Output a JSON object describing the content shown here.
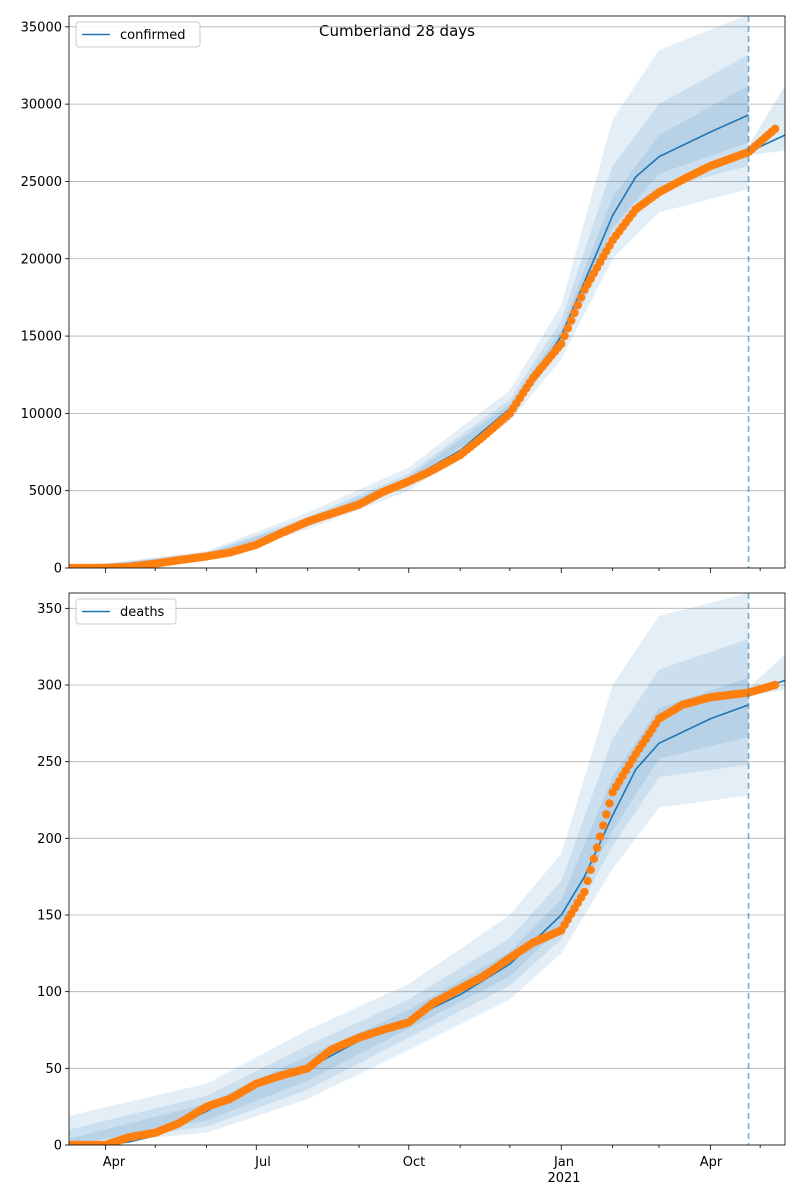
{
  "title": "Cumberland 28 days",
  "x_tick_labels": [
    "Apr",
    "Jul",
    "Oct",
    "Jan",
    "Apr"
  ],
  "x_year_label": "2021",
  "colors": {
    "model": "#1f77b4",
    "observed": "#ff7f0e",
    "grid": "#b0b0b0",
    "band": "#1f77b4"
  },
  "chart_data": [
    {
      "type": "line",
      "legend": "confirmed",
      "legend_position": "top-left",
      "x_range": [
        "2020-03-10",
        "2021-05-16"
      ],
      "ylim": [
        0,
        35700
      ],
      "yticks": [
        0,
        5000,
        10000,
        15000,
        20000,
        25000,
        30000,
        35000
      ],
      "grid": true,
      "forecast_start": "2021-04-24",
      "series": [
        {
          "name": "confirmed",
          "style": "line",
          "points": [
            [
              "2020-03-10",
              0
            ],
            [
              "2020-04-01",
              10
            ],
            [
              "2020-05-01",
              150
            ],
            [
              "2020-06-01",
              850
            ],
            [
              "2020-07-01",
              1450
            ],
            [
              "2020-08-01",
              3000
            ],
            [
              "2020-09-01",
              4200
            ],
            [
              "2020-10-01",
              5700
            ],
            [
              "2020-11-01",
              7600
            ],
            [
              "2020-12-01",
              10300
            ],
            [
              "2020-12-15",
              12200
            ],
            [
              "2021-01-01",
              15000
            ],
            [
              "2021-01-15",
              18500
            ],
            [
              "2021-02-01",
              22800
            ],
            [
              "2021-02-15",
              25300
            ],
            [
              "2021-03-01",
              26600
            ],
            [
              "2021-04-01",
              28200
            ],
            [
              "2021-04-24",
              29300
            ]
          ]
        },
        {
          "name": "confirmed-forecast",
          "style": "line",
          "points": [
            [
              "2021-04-24",
              26900
            ],
            [
              "2021-05-16",
              28000
            ]
          ]
        },
        {
          "name": "observed",
          "style": "markers",
          "points": [
            [
              "2020-03-10",
              0
            ],
            [
              "2020-04-01",
              10
            ],
            [
              "2020-04-15",
              70
            ],
            [
              "2020-05-01",
              280
            ],
            [
              "2020-05-15",
              500
            ],
            [
              "2020-06-01",
              750
            ],
            [
              "2020-06-15",
              1000
            ],
            [
              "2020-07-01",
              1500
            ],
            [
              "2020-07-15",
              2200
            ],
            [
              "2020-08-01",
              3000
            ],
            [
              "2020-08-15",
              3500
            ],
            [
              "2020-09-01",
              4100
            ],
            [
              "2020-09-15",
              4900
            ],
            [
              "2020-10-01",
              5600
            ],
            [
              "2020-10-15",
              6300
            ],
            [
              "2020-11-01",
              7300
            ],
            [
              "2020-11-15",
              8500
            ],
            [
              "2020-12-01",
              10000
            ],
            [
              "2020-12-15",
              12300
            ],
            [
              "2021-01-01",
              14500
            ],
            [
              "2021-01-15",
              18000
            ],
            [
              "2021-02-01",
              21200
            ],
            [
              "2021-02-15",
              23200
            ],
            [
              "2021-03-01",
              24300
            ],
            [
              "2021-03-15",
              25100
            ],
            [
              "2021-04-01",
              26000
            ],
            [
              "2021-04-24",
              26900
            ],
            [
              "2021-05-10",
              28400
            ]
          ]
        }
      ],
      "bands": [
        {
          "level": "outer",
          "lower": [
            [
              "2020-03-10",
              0
            ],
            [
              "2020-06-01",
              600
            ],
            [
              "2020-08-01",
              2500
            ],
            [
              "2020-10-01",
              5000
            ],
            [
              "2020-12-01",
              9500
            ],
            [
              "2021-01-01",
              13500
            ],
            [
              "2021-02-01",
              20000
            ],
            [
              "2021-03-01",
              23000
            ],
            [
              "2021-04-24",
              24500
            ]
          ],
          "upper": [
            [
              "2020-03-10",
              0
            ],
            [
              "2020-06-01",
              1100
            ],
            [
              "2020-08-01",
              3600
            ],
            [
              "2020-10-01",
              6500
            ],
            [
              "2020-12-01",
              11500
            ],
            [
              "2021-01-01",
              17000
            ],
            [
              "2021-02-01",
              29000
            ],
            [
              "2021-03-01",
              33500
            ],
            [
              "2021-04-24",
              35800
            ]
          ]
        },
        {
          "level": "middle",
          "lower": [
            [
              "2020-03-10",
              0
            ],
            [
              "2020-06-01",
              700
            ],
            [
              "2020-08-01",
              2700
            ],
            [
              "2020-10-01",
              5300
            ],
            [
              "2020-12-01",
              9800
            ],
            [
              "2021-01-01",
              14200
            ],
            [
              "2021-02-01",
              21000
            ],
            [
              "2021-03-01",
              24500
            ],
            [
              "2021-04-24",
              26000
            ]
          ],
          "upper": [
            [
              "2020-03-10",
              0
            ],
            [
              "2020-06-01",
              1000
            ],
            [
              "2020-08-01",
              3300
            ],
            [
              "2020-10-01",
              6100
            ],
            [
              "2020-12-01",
              10900
            ],
            [
              "2021-01-01",
              16000
            ],
            [
              "2021-02-01",
              26000
            ],
            [
              "2021-03-01",
              30000
            ],
            [
              "2021-04-24",
              33200
            ]
          ]
        },
        {
          "level": "inner",
          "lower": [
            [
              "2020-03-10",
              0
            ],
            [
              "2020-06-01",
              780
            ],
            [
              "2020-08-01",
              2850
            ],
            [
              "2020-10-01",
              5500
            ],
            [
              "2020-12-01",
              10000
            ],
            [
              "2021-01-01",
              14600
            ],
            [
              "2021-02-01",
              22000
            ],
            [
              "2021-03-01",
              25500
            ],
            [
              "2021-04-24",
              27500
            ]
          ],
          "upper": [
            [
              "2020-03-10",
              0
            ],
            [
              "2020-06-01",
              920
            ],
            [
              "2020-08-01",
              3150
            ],
            [
              "2020-10-01",
              5900
            ],
            [
              "2020-12-01",
              10600
            ],
            [
              "2021-01-01",
              15400
            ],
            [
              "2021-02-01",
              24000
            ],
            [
              "2021-03-01",
              28000
            ],
            [
              "2021-04-24",
              31200
            ]
          ]
        },
        {
          "level": "forecast",
          "lower": [
            [
              "2021-04-24",
              26700
            ],
            [
              "2021-05-16",
              27000
            ]
          ],
          "upper": [
            [
              "2021-04-24",
              27300
            ],
            [
              "2021-05-16",
              31200
            ]
          ]
        }
      ]
    },
    {
      "type": "line",
      "legend": "deaths",
      "legend_position": "top-left",
      "x_range": [
        "2020-03-10",
        "2021-05-16"
      ],
      "ylim": [
        0,
        360
      ],
      "yticks": [
        0,
        50,
        100,
        150,
        200,
        250,
        300,
        350
      ],
      "grid": true,
      "forecast_start": "2021-04-24",
      "series": [
        {
          "name": "deaths",
          "style": "line",
          "points": [
            [
              "2020-03-10",
              0
            ],
            [
              "2020-04-01",
              0
            ],
            [
              "2020-04-15",
              2
            ],
            [
              "2020-05-01",
              6
            ],
            [
              "2020-06-01",
              22
            ],
            [
              "2020-07-01",
              40
            ],
            [
              "2020-08-01",
              50
            ],
            [
              "2020-09-01",
              68
            ],
            [
              "2020-10-01",
              82
            ],
            [
              "2020-11-01",
              98
            ],
            [
              "2020-12-01",
              118
            ],
            [
              "2021-01-01",
              150
            ],
            [
              "2021-01-15",
              175
            ],
            [
              "2021-02-01",
              215
            ],
            [
              "2021-02-15",
              245
            ],
            [
              "2021-03-01",
              262
            ],
            [
              "2021-04-01",
              278
            ],
            [
              "2021-04-24",
              287
            ]
          ]
        },
        {
          "name": "deaths-forecast",
          "style": "line",
          "points": [
            [
              "2021-04-24",
              295
            ],
            [
              "2021-05-16",
              303
            ]
          ]
        },
        {
          "name": "observed",
          "style": "markers",
          "points": [
            [
              "2020-03-10",
              0
            ],
            [
              "2020-04-01",
              0
            ],
            [
              "2020-04-15",
              5
            ],
            [
              "2020-05-01",
              8
            ],
            [
              "2020-05-15",
              14
            ],
            [
              "2020-06-01",
              25
            ],
            [
              "2020-06-15",
              30
            ],
            [
              "2020-07-01",
              40
            ],
            [
              "2020-07-15",
              45
            ],
            [
              "2020-08-01",
              50
            ],
            [
              "2020-08-15",
              62
            ],
            [
              "2020-09-01",
              70
            ],
            [
              "2020-09-15",
              75
            ],
            [
              "2020-10-01",
              80
            ],
            [
              "2020-10-15",
              92
            ],
            [
              "2020-11-01",
              102
            ],
            [
              "2020-11-15",
              110
            ],
            [
              "2020-12-01",
              122
            ],
            [
              "2020-12-15",
              132
            ],
            [
              "2021-01-01",
              140
            ],
            [
              "2021-01-15",
              165
            ],
            [
              "2021-02-01",
              230
            ],
            [
              "2021-02-15",
              255
            ],
            [
              "2021-03-01",
              278
            ],
            [
              "2021-03-15",
              287
            ],
            [
              "2021-04-01",
              292
            ],
            [
              "2021-04-24",
              295
            ],
            [
              "2021-05-10",
              300
            ]
          ]
        }
      ],
      "bands": [
        {
          "level": "outer",
          "lower": [
            [
              "2020-03-10",
              0
            ],
            [
              "2020-06-01",
              8
            ],
            [
              "2020-08-01",
              30
            ],
            [
              "2020-10-01",
              62
            ],
            [
              "2020-12-01",
              95
            ],
            [
              "2021-01-01",
              125
            ],
            [
              "2021-02-01",
              180
            ],
            [
              "2021-03-01",
              220
            ],
            [
              "2021-04-24",
              228
            ]
          ],
          "upper": [
            [
              "2020-03-10",
              19
            ],
            [
              "2020-06-01",
              40
            ],
            [
              "2020-08-01",
              75
            ],
            [
              "2020-10-01",
              105
            ],
            [
              "2020-12-01",
              150
            ],
            [
              "2021-01-01",
              190
            ],
            [
              "2021-02-01",
              300
            ],
            [
              "2021-03-01",
              345
            ],
            [
              "2021-04-24",
              360
            ]
          ]
        },
        {
          "level": "middle",
          "lower": [
            [
              "2020-03-10",
              0
            ],
            [
              "2020-06-01",
              12
            ],
            [
              "2020-08-01",
              36
            ],
            [
              "2020-10-01",
              70
            ],
            [
              "2020-12-01",
              104
            ],
            [
              "2021-01-01",
              134
            ],
            [
              "2021-02-01",
              195
            ],
            [
              "2021-03-01",
              240
            ],
            [
              "2021-04-24",
              248
            ]
          ],
          "upper": [
            [
              "2020-03-10",
              10
            ],
            [
              "2020-06-01",
              32
            ],
            [
              "2020-08-01",
              65
            ],
            [
              "2020-10-01",
              95
            ],
            [
              "2020-12-01",
              135
            ],
            [
              "2021-01-01",
              172
            ],
            [
              "2021-02-01",
              265
            ],
            [
              "2021-03-01",
              310
            ],
            [
              "2021-04-24",
              330
            ]
          ]
        },
        {
          "level": "inner",
          "lower": [
            [
              "2020-03-10",
              0
            ],
            [
              "2020-06-01",
              16
            ],
            [
              "2020-08-01",
              42
            ],
            [
              "2020-10-01",
              76
            ],
            [
              "2020-12-01",
              110
            ],
            [
              "2021-01-01",
              142
            ],
            [
              "2021-02-01",
              205
            ],
            [
              "2021-03-01",
              252
            ],
            [
              "2021-04-24",
              266
            ]
          ],
          "upper": [
            [
              "2020-03-10",
              4
            ],
            [
              "2020-06-01",
              27
            ],
            [
              "2020-08-01",
              58
            ],
            [
              "2020-10-01",
              88
            ],
            [
              "2020-12-01",
              126
            ],
            [
              "2021-01-01",
              160
            ],
            [
              "2021-02-01",
              240
            ],
            [
              "2021-03-01",
              285
            ],
            [
              "2021-04-24",
              305
            ]
          ]
        },
        {
          "level": "forecast",
          "lower": [
            [
              "2021-04-24",
              293
            ],
            [
              "2021-05-16",
              297
            ]
          ],
          "upper": [
            [
              "2021-04-24",
              298
            ],
            [
              "2021-05-16",
              320
            ]
          ]
        }
      ]
    }
  ]
}
